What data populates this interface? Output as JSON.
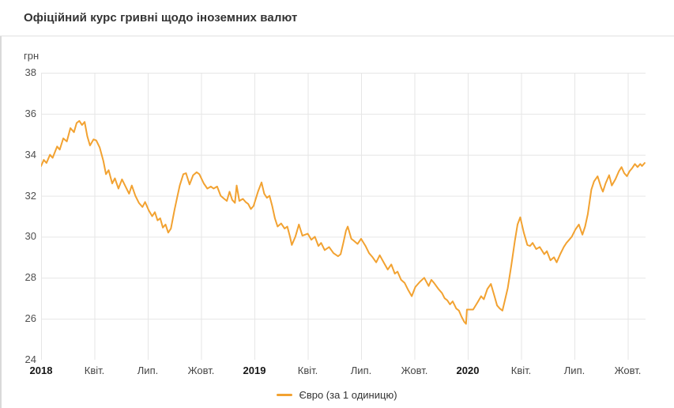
{
  "header": {
    "title": "Офіційний курс гривні щодо іноземних валют"
  },
  "colors": {
    "line": "#F2A231",
    "grid": "#E6E6E6",
    "divider": "#E0E0E0",
    "title_text": "#333333",
    "axis_text": "#4F4F4F",
    "year_tick_text": "#161616",
    "legend_text": "#333333",
    "background": "#FFFFFF"
  },
  "chart_data": {
    "type": "line",
    "title": "Офіційний курс гривні щодо іноземних валют",
    "xlabel": "",
    "ylabel": "грн",
    "x_unit": "months since 2018-01-01",
    "xlim": [
      0,
      34
    ],
    "ylim": [
      24,
      38
    ],
    "grid": true,
    "legend_position": "bottom",
    "y_ticks": [
      38,
      36,
      34,
      32,
      30,
      28,
      26,
      24
    ],
    "x_ticks": [
      {
        "pos": 0,
        "label": "2018",
        "bold": true
      },
      {
        "pos": 3,
        "label": "Квіт."
      },
      {
        "pos": 6,
        "label": "Лип."
      },
      {
        "pos": 9,
        "label": "Жовт."
      },
      {
        "pos": 12,
        "label": "2019",
        "bold": true
      },
      {
        "pos": 15,
        "label": "Квіт."
      },
      {
        "pos": 18,
        "label": "Лип."
      },
      {
        "pos": 21,
        "label": "Жовт."
      },
      {
        "pos": 24,
        "label": "2020",
        "bold": true
      },
      {
        "pos": 27,
        "label": "Квіт."
      },
      {
        "pos": 30,
        "label": "Лип."
      },
      {
        "pos": 33,
        "label": "Жовт."
      }
    ],
    "series": [
      {
        "name": "Євро (за 1 одиницю)",
        "color": "#F2A231",
        "points": [
          [
            0.0,
            33.45
          ],
          [
            0.15,
            33.75
          ],
          [
            0.3,
            33.6
          ],
          [
            0.5,
            34.0
          ],
          [
            0.65,
            33.85
          ],
          [
            0.9,
            34.4
          ],
          [
            1.05,
            34.25
          ],
          [
            1.25,
            34.8
          ],
          [
            1.45,
            34.65
          ],
          [
            1.65,
            35.3
          ],
          [
            1.85,
            35.1
          ],
          [
            2.0,
            35.55
          ],
          [
            2.15,
            35.65
          ],
          [
            2.3,
            35.45
          ],
          [
            2.45,
            35.6
          ],
          [
            2.6,
            34.9
          ],
          [
            2.75,
            34.45
          ],
          [
            2.95,
            34.75
          ],
          [
            3.1,
            34.7
          ],
          [
            3.3,
            34.35
          ],
          [
            3.5,
            33.7
          ],
          [
            3.65,
            33.05
          ],
          [
            3.8,
            33.25
          ],
          [
            4.0,
            32.6
          ],
          [
            4.15,
            32.85
          ],
          [
            4.35,
            32.35
          ],
          [
            4.55,
            32.8
          ],
          [
            4.75,
            32.45
          ],
          [
            4.95,
            32.1
          ],
          [
            5.1,
            32.5
          ],
          [
            5.3,
            32.0
          ],
          [
            5.5,
            31.65
          ],
          [
            5.7,
            31.45
          ],
          [
            5.85,
            31.7
          ],
          [
            6.05,
            31.3
          ],
          [
            6.25,
            31.0
          ],
          [
            6.4,
            31.2
          ],
          [
            6.55,
            30.8
          ],
          [
            6.7,
            30.9
          ],
          [
            6.85,
            30.45
          ],
          [
            7.0,
            30.6
          ],
          [
            7.15,
            30.2
          ],
          [
            7.3,
            30.4
          ],
          [
            7.5,
            31.3
          ],
          [
            7.65,
            31.9
          ],
          [
            7.8,
            32.5
          ],
          [
            8.0,
            33.05
          ],
          [
            8.15,
            33.1
          ],
          [
            8.35,
            32.55
          ],
          [
            8.55,
            33.0
          ],
          [
            8.75,
            33.15
          ],
          [
            8.9,
            33.05
          ],
          [
            9.15,
            32.6
          ],
          [
            9.35,
            32.35
          ],
          [
            9.55,
            32.45
          ],
          [
            9.7,
            32.35
          ],
          [
            9.9,
            32.45
          ],
          [
            10.1,
            32.0
          ],
          [
            10.3,
            31.85
          ],
          [
            10.45,
            31.75
          ],
          [
            10.6,
            32.2
          ],
          [
            10.75,
            31.8
          ],
          [
            10.9,
            31.65
          ],
          [
            11.0,
            32.5
          ],
          [
            11.15,
            31.75
          ],
          [
            11.35,
            31.85
          ],
          [
            11.5,
            31.7
          ],
          [
            11.65,
            31.6
          ],
          [
            11.8,
            31.35
          ],
          [
            11.95,
            31.5
          ],
          [
            12.2,
            32.2
          ],
          [
            12.4,
            32.65
          ],
          [
            12.55,
            32.1
          ],
          [
            12.7,
            31.9
          ],
          [
            12.85,
            32.0
          ],
          [
            13.0,
            31.5
          ],
          [
            13.15,
            30.9
          ],
          [
            13.3,
            30.5
          ],
          [
            13.5,
            30.65
          ],
          [
            13.7,
            30.4
          ],
          [
            13.85,
            30.5
          ],
          [
            14.0,
            30.0
          ],
          [
            14.1,
            29.6
          ],
          [
            14.3,
            30.0
          ],
          [
            14.5,
            30.6
          ],
          [
            14.7,
            30.05
          ],
          [
            14.85,
            30.1
          ],
          [
            15.0,
            30.15
          ],
          [
            15.2,
            29.85
          ],
          [
            15.4,
            30.0
          ],
          [
            15.6,
            29.55
          ],
          [
            15.75,
            29.7
          ],
          [
            15.95,
            29.35
          ],
          [
            16.2,
            29.5
          ],
          [
            16.45,
            29.2
          ],
          [
            16.7,
            29.05
          ],
          [
            16.85,
            29.15
          ],
          [
            17.0,
            29.7
          ],
          [
            17.15,
            30.3
          ],
          [
            17.25,
            30.5
          ],
          [
            17.45,
            29.9
          ],
          [
            17.6,
            29.8
          ],
          [
            17.8,
            29.65
          ],
          [
            18.0,
            29.9
          ],
          [
            18.25,
            29.55
          ],
          [
            18.45,
            29.2
          ],
          [
            18.65,
            29.0
          ],
          [
            18.85,
            28.75
          ],
          [
            19.05,
            29.1
          ],
          [
            19.3,
            28.7
          ],
          [
            19.5,
            28.4
          ],
          [
            19.7,
            28.65
          ],
          [
            19.9,
            28.2
          ],
          [
            20.05,
            28.3
          ],
          [
            20.25,
            27.9
          ],
          [
            20.45,
            27.75
          ],
          [
            20.65,
            27.4
          ],
          [
            20.85,
            27.1
          ],
          [
            21.05,
            27.55
          ],
          [
            21.3,
            27.8
          ],
          [
            21.55,
            28.0
          ],
          [
            21.8,
            27.6
          ],
          [
            21.95,
            27.9
          ],
          [
            22.1,
            27.75
          ],
          [
            22.35,
            27.45
          ],
          [
            22.55,
            27.25
          ],
          [
            22.7,
            27.0
          ],
          [
            22.85,
            26.9
          ],
          [
            23.0,
            26.7
          ],
          [
            23.15,
            26.85
          ],
          [
            23.35,
            26.5
          ],
          [
            23.5,
            26.4
          ],
          [
            23.65,
            26.1
          ],
          [
            23.8,
            25.85
          ],
          [
            23.9,
            25.75
          ],
          [
            23.95,
            26.45
          ],
          [
            24.3,
            26.45
          ],
          [
            24.55,
            26.8
          ],
          [
            24.75,
            27.1
          ],
          [
            24.9,
            26.95
          ],
          [
            25.1,
            27.45
          ],
          [
            25.3,
            27.7
          ],
          [
            25.5,
            27.1
          ],
          [
            25.65,
            26.65
          ],
          [
            25.8,
            26.5
          ],
          [
            25.95,
            26.4
          ],
          [
            26.1,
            26.95
          ],
          [
            26.25,
            27.5
          ],
          [
            26.45,
            28.6
          ],
          [
            26.65,
            29.8
          ],
          [
            26.8,
            30.6
          ],
          [
            26.95,
            30.95
          ],
          [
            27.15,
            30.2
          ],
          [
            27.35,
            29.6
          ],
          [
            27.5,
            29.55
          ],
          [
            27.65,
            29.7
          ],
          [
            27.85,
            29.4
          ],
          [
            28.05,
            29.5
          ],
          [
            28.3,
            29.15
          ],
          [
            28.45,
            29.3
          ],
          [
            28.65,
            28.85
          ],
          [
            28.85,
            29.0
          ],
          [
            29.0,
            28.75
          ],
          [
            29.2,
            29.15
          ],
          [
            29.4,
            29.5
          ],
          [
            29.55,
            29.7
          ],
          [
            29.7,
            29.85
          ],
          [
            29.85,
            30.0
          ],
          [
            30.05,
            30.35
          ],
          [
            30.25,
            30.6
          ],
          [
            30.45,
            30.1
          ],
          [
            30.6,
            30.5
          ],
          [
            30.75,
            31.1
          ],
          [
            30.95,
            32.3
          ],
          [
            31.1,
            32.7
          ],
          [
            31.3,
            32.95
          ],
          [
            31.5,
            32.4
          ],
          [
            31.6,
            32.2
          ],
          [
            31.75,
            32.6
          ],
          [
            31.95,
            33.0
          ],
          [
            32.1,
            32.5
          ],
          [
            32.3,
            32.8
          ],
          [
            32.5,
            33.2
          ],
          [
            32.65,
            33.4
          ],
          [
            32.8,
            33.1
          ],
          [
            32.95,
            32.95
          ],
          [
            33.1,
            33.2
          ],
          [
            33.25,
            33.35
          ],
          [
            33.4,
            33.55
          ],
          [
            33.55,
            33.4
          ],
          [
            33.7,
            33.55
          ],
          [
            33.8,
            33.45
          ],
          [
            33.95,
            33.6
          ]
        ]
      }
    ]
  },
  "legend": {
    "items": [
      {
        "label": "Євро (за 1 одиницю)",
        "color": "#F2A231"
      }
    ]
  }
}
